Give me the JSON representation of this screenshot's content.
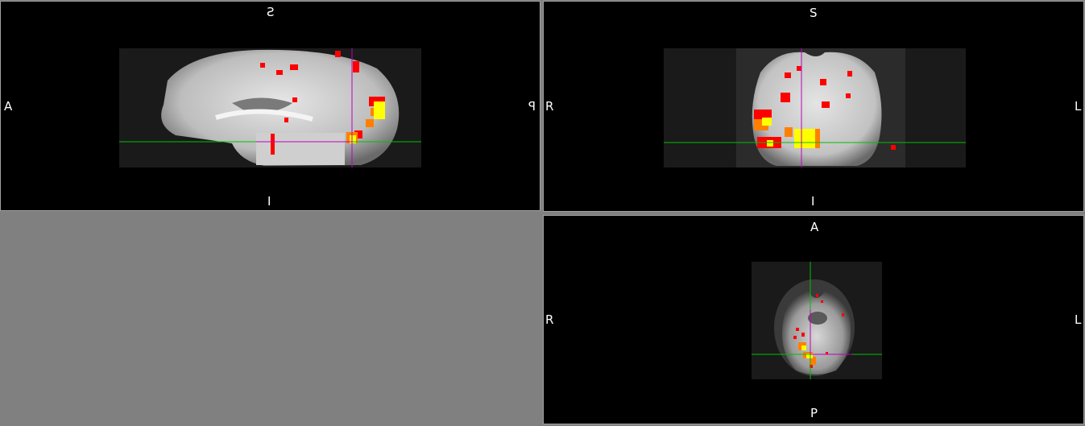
{
  "sagittal": {
    "top": "S",
    "bottom": "I",
    "left": "A",
    "right": "P"
  },
  "coronal": {
    "top": "S",
    "bottom": "I",
    "left": "R",
    "right": "L"
  },
  "axial": {
    "top": "A",
    "bottom": "P",
    "left": "R",
    "right": "L"
  },
  "colors": {
    "crosshair_horizontal": "#00c000",
    "crosshair_vertical": "#c000c0",
    "overlay_low": "#ff0000",
    "overlay_mid": "#ff8000",
    "overlay_high": "#ffff00",
    "empty_panel": "#808080"
  }
}
